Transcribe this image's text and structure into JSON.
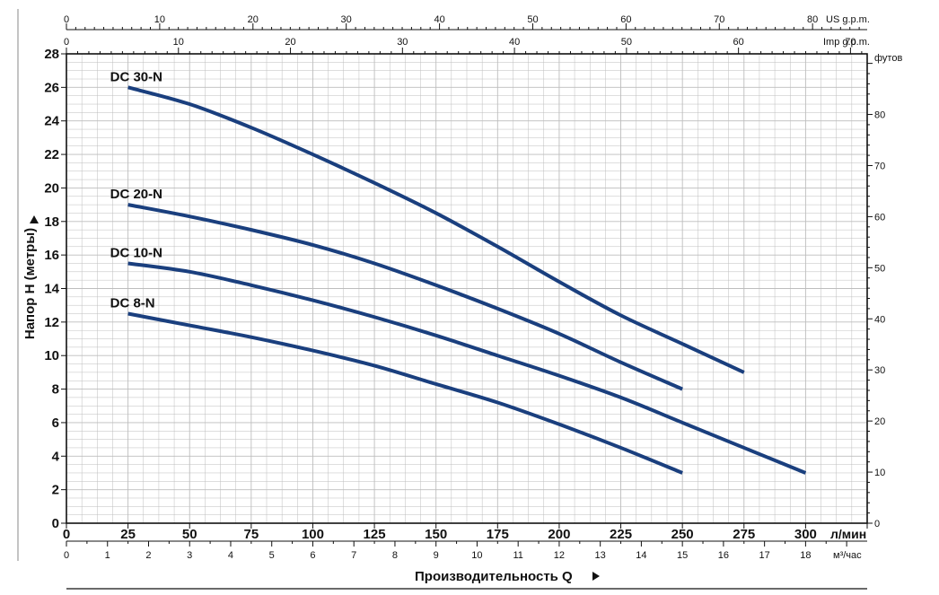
{
  "chart_data": {
    "type": "line",
    "xlabel": "Производительность Q",
    "ylabel": "Напор H (метры)",
    "xlim": [
      0,
      325
    ],
    "ylim": [
      0,
      28
    ],
    "grid": true,
    "x_unit_label": "л/мин",
    "y_ticks": [
      "0",
      "2",
      "4",
      "6",
      "8",
      "10",
      "12",
      "14",
      "16",
      "18",
      "20",
      "22",
      "24",
      "26",
      "28"
    ],
    "x_ticks": [
      "0",
      "25",
      "50",
      "75",
      "100",
      "125",
      "150",
      "175",
      "200",
      "225",
      "250",
      "275",
      "300"
    ],
    "secondary_axes": {
      "right": {
        "label": "футов",
        "ticks": [
          "0",
          "10",
          "20",
          "30",
          "40",
          "50",
          "60",
          "70",
          "80"
        ]
      },
      "top_us": {
        "label": "US g.p.m.",
        "ticks": [
          "0",
          "10",
          "20",
          "30",
          "40",
          "50",
          "60",
          "70",
          "80"
        ]
      },
      "top_imp": {
        "label": "Imp g.p.m.",
        "ticks": [
          "0",
          "10",
          "20",
          "30",
          "40",
          "50",
          "60",
          "70"
        ]
      },
      "bottom_m3": {
        "label": "м³/час",
        "ticks": [
          "0",
          "1",
          "2",
          "3",
          "4",
          "5",
          "6",
          "7",
          "8",
          "9",
          "10",
          "11",
          "12",
          "13",
          "14",
          "15",
          "16",
          "17",
          "18"
        ]
      }
    },
    "series": [
      {
        "name": "DC 30-N",
        "x": [
          25,
          50,
          75,
          100,
          125,
          150,
          175,
          200,
          225,
          250,
          275
        ],
        "y": [
          26,
          25,
          23.6,
          22,
          20.3,
          18.5,
          16.5,
          14.4,
          12.4,
          10.7,
          9
        ]
      },
      {
        "name": "DC 20-N",
        "x": [
          25,
          50,
          75,
          100,
          125,
          150,
          175,
          200,
          225,
          250
        ],
        "y": [
          19,
          18.3,
          17.5,
          16.6,
          15.5,
          14.2,
          12.8,
          11.3,
          9.6,
          8
        ]
      },
      {
        "name": "DC 10-N",
        "x": [
          25,
          50,
          75,
          100,
          125,
          150,
          175,
          200,
          225,
          250,
          275,
          300
        ],
        "y": [
          15.5,
          15,
          14.2,
          13.3,
          12.3,
          11.2,
          10,
          8.8,
          7.5,
          6,
          4.5,
          3
        ]
      },
      {
        "name": "DC 8-N",
        "x": [
          25,
          50,
          75,
          100,
          125,
          150,
          175,
          200,
          225,
          250
        ],
        "y": [
          12.5,
          11.8,
          11.1,
          10.3,
          9.4,
          8.3,
          7.2,
          5.9,
          4.5,
          3
        ]
      }
    ],
    "colors": {
      "curve": "#1a3f7e",
      "grid": "#bdbdbd",
      "axis": "#111111"
    }
  }
}
